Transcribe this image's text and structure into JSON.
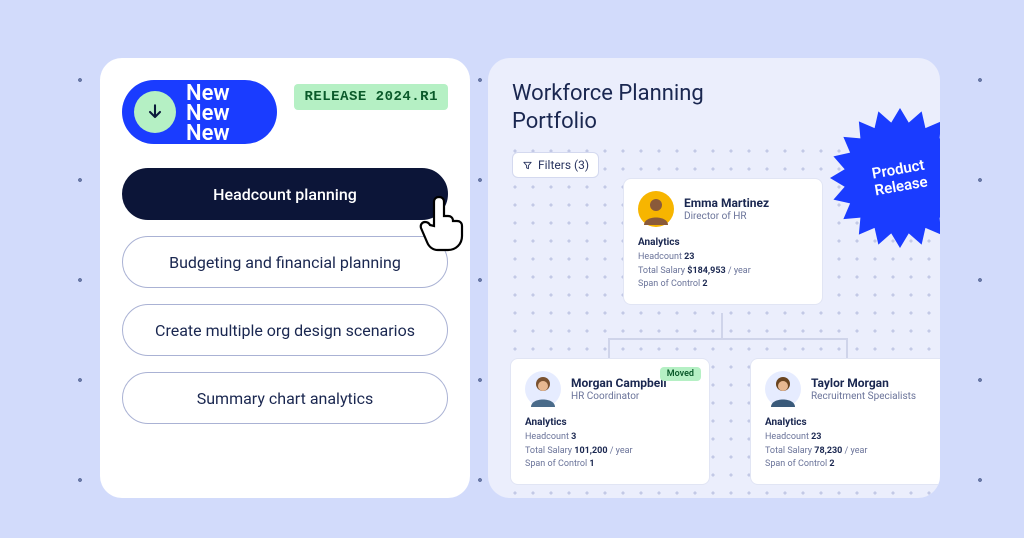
{
  "colors": {
    "page_bg": "#d2dbfb",
    "card_bg": "#ffffff",
    "right_card_bg": "#ebeefc",
    "blue_accent": "#1a3cff",
    "dark_navy": "#0c1538",
    "mint": "#b5f0c4",
    "text_primary": "#1a2750",
    "text_muted": "#6a7399"
  },
  "left_card": {
    "new_word": "New",
    "release_tag": "RELEASE 2024.R1",
    "options": [
      {
        "label": "Headcount planning",
        "active": true
      },
      {
        "label": "Budgeting and financial planning",
        "active": false
      },
      {
        "label": "Create multiple org design scenarios",
        "active": false
      },
      {
        "label": "Summary chart analytics",
        "active": false
      }
    ]
  },
  "right_card": {
    "title_line1": "Workforce Planning",
    "title_line2": "Portfolio",
    "filters_label": "Filters (3)",
    "analytics_label": "Analytics",
    "headcount_label": "Headcount",
    "salary_label": "Total Salary",
    "salary_suffix": " / year",
    "span_label": "Span of Control",
    "moved_badge": "Moved",
    "people": {
      "top": {
        "name": "Emma Martinez",
        "role": "Director of HR",
        "avatar_bg": "#f7b500",
        "headcount": "23",
        "salary": "$184,953",
        "span": "2"
      },
      "left": {
        "name": "Morgan Campbell",
        "role": "HR Coordinator",
        "avatar_bg": "#e6ecff",
        "moved": true,
        "headcount": "3",
        "salary": "101,200",
        "span": "1"
      },
      "right": {
        "name": "Taylor Morgan",
        "role": "Recruitment Specialists",
        "avatar_bg": "#e6ecff",
        "headcount": "23",
        "salary": "78,230",
        "span": "2"
      }
    }
  },
  "starburst": {
    "line1": "Product",
    "line2": "Release",
    "fill": "#1a3cff"
  }
}
